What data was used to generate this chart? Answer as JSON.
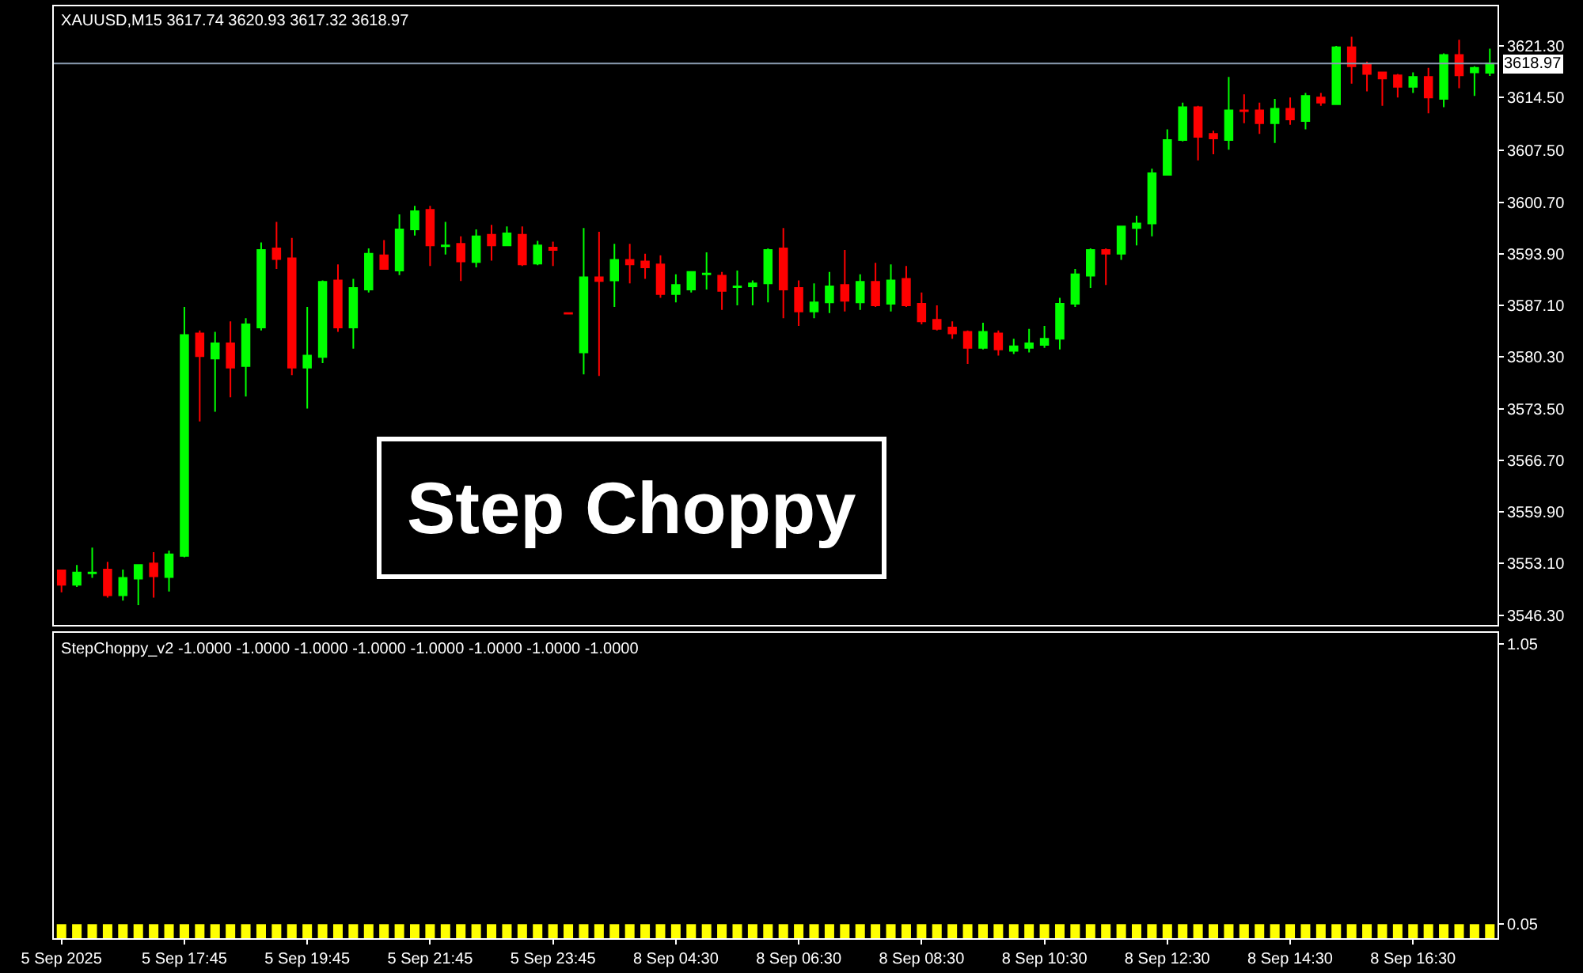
{
  "chart_data": [
    {
      "type": "candlestick",
      "title": "XAUUSD,M15 3617.74 3620.93 3617.32 3618.97",
      "categories": [
        null,
        null,
        null,
        null,
        null,
        null,
        null,
        null,
        null,
        null,
        null,
        null,
        null,
        null,
        null,
        null,
        null,
        null,
        null,
        null,
        null,
        null,
        null,
        null,
        null,
        null,
        null,
        null,
        null,
        null,
        null,
        null,
        null,
        null,
        null,
        null,
        null,
        null,
        null,
        null,
        null,
        null,
        null,
        null,
        null,
        null,
        null,
        null,
        null,
        null,
        null,
        null,
        null,
        null,
        null,
        null,
        null,
        null,
        null,
        null,
        null,
        null,
        null,
        null,
        null,
        null,
        null,
        null,
        null,
        null,
        null,
        null,
        null,
        null,
        null,
        null,
        null,
        null,
        null,
        null,
        null,
        null,
        null,
        null,
        null,
        null,
        null,
        null,
        null,
        null,
        null,
        null,
        null,
        null
      ],
      "ohlc": [
        [
          3552.2,
          3552.3,
          3549.3,
          3550.3
        ],
        [
          3550.3,
          3552.9,
          3550.0,
          3551.9
        ],
        [
          3551.8,
          3555.2,
          3551.2,
          3551.9
        ],
        [
          3552.3,
          3553.3,
          3548.6,
          3548.9
        ],
        [
          3548.9,
          3552.3,
          3548.2,
          3551.2
        ],
        [
          3551.1,
          3553.0,
          3547.6,
          3552.9
        ],
        [
          3553.1,
          3554.6,
          3548.6,
          3551.4
        ],
        [
          3551.3,
          3554.8,
          3549.4,
          3554.3
        ],
        [
          3554.1,
          3586.9,
          3553.9,
          3583.2
        ],
        [
          3583.4,
          3583.8,
          3571.8,
          3580.4
        ],
        [
          3580.1,
          3583.6,
          3573.1,
          3582.1
        ],
        [
          3582.1,
          3585.0,
          3575.0,
          3578.9
        ],
        [
          3579.1,
          3585.4,
          3575.1,
          3584.6
        ],
        [
          3584.2,
          3595.4,
          3583.8,
          3594.4
        ],
        [
          3594.6,
          3598.1,
          3591.9,
          3593.2
        ],
        [
          3593.3,
          3596.0,
          3577.9,
          3578.9
        ],
        [
          3578.9,
          3586.9,
          3573.5,
          3580.5
        ],
        [
          3580.3,
          3590.4,
          3579.5,
          3590.2
        ],
        [
          3590.4,
          3592.5,
          3583.6,
          3584.2
        ],
        [
          3584.2,
          3590.6,
          3581.4,
          3589.4
        ],
        [
          3589.2,
          3594.6,
          3588.8,
          3593.9
        ],
        [
          3593.7,
          3595.7,
          3591.8,
          3591.9
        ],
        [
          3591.7,
          3599.1,
          3591.1,
          3597.1
        ],
        [
          3597.1,
          3600.2,
          3596.3,
          3599.5
        ],
        [
          3599.7,
          3600.2,
          3592.3,
          3595.0
        ],
        [
          3594.9,
          3598.1,
          3593.8,
          3595.0
        ],
        [
          3595.2,
          3596.2,
          3590.3,
          3592.9
        ],
        [
          3592.8,
          3597.1,
          3592.1,
          3596.2
        ],
        [
          3596.4,
          3597.7,
          3593.0,
          3595.0
        ],
        [
          3595.0,
          3597.5,
          3594.9,
          3596.6
        ],
        [
          3596.4,
          3597.5,
          3592.3,
          3592.5
        ],
        [
          3592.6,
          3595.6,
          3592.4,
          3595.0
        ],
        [
          3594.7,
          3595.5,
          3592.3,
          3594.4
        ],
        [
          3586.1,
          3586.1,
          3585.9,
          3586.0
        ],
        [
          3580.9,
          3597.3,
          3578.0,
          3590.8
        ],
        [
          3590.8,
          3596.8,
          3577.8,
          3590.3
        ],
        [
          3590.4,
          3595.2,
          3586.9,
          3593.1
        ],
        [
          3593.1,
          3595.2,
          3590.0,
          3592.5
        ],
        [
          3592.9,
          3593.9,
          3590.6,
          3592.1
        ],
        [
          3592.5,
          3593.7,
          3588.1,
          3588.6
        ],
        [
          3588.6,
          3591.2,
          3587.5,
          3589.8
        ],
        [
          3589.2,
          3591.6,
          3588.8,
          3591.5
        ],
        [
          3591.2,
          3594.1,
          3589.2,
          3591.3
        ],
        [
          3591.0,
          3591.5,
          3586.5,
          3589.0
        ],
        [
          3589.5,
          3591.7,
          3587.1,
          3589.6
        ],
        [
          3589.6,
          3590.4,
          3587.1,
          3590.0
        ],
        [
          3590.0,
          3594.6,
          3587.5,
          3594.4
        ],
        [
          3594.6,
          3597.3,
          3585.4,
          3589.2
        ],
        [
          3589.4,
          3590.4,
          3584.4,
          3586.3
        ],
        [
          3586.3,
          3590.0,
          3585.4,
          3587.5
        ],
        [
          3587.5,
          3591.5,
          3586.1,
          3589.6
        ],
        [
          3589.8,
          3594.4,
          3586.3,
          3587.7
        ],
        [
          3587.5,
          3591.2,
          3586.5,
          3590.2
        ],
        [
          3590.2,
          3592.7,
          3586.9,
          3587.1
        ],
        [
          3587.3,
          3592.5,
          3586.3,
          3590.4
        ],
        [
          3590.6,
          3592.3,
          3586.9,
          3587.1
        ],
        [
          3587.3,
          3588.8,
          3584.6,
          3585.0
        ],
        [
          3585.2,
          3587.1,
          3583.8,
          3584.0
        ],
        [
          3584.2,
          3585.0,
          3582.7,
          3583.4
        ],
        [
          3583.6,
          3583.8,
          3579.4,
          3581.5
        ],
        [
          3581.5,
          3584.8,
          3581.3,
          3583.6
        ],
        [
          3583.4,
          3583.8,
          3580.5,
          3581.3
        ],
        [
          3581.1,
          3582.7,
          3580.7,
          3581.7
        ],
        [
          3581.5,
          3584.0,
          3580.9,
          3582.1
        ],
        [
          3581.9,
          3584.4,
          3581.5,
          3582.7
        ],
        [
          3582.7,
          3588.1,
          3581.3,
          3587.3
        ],
        [
          3587.3,
          3591.9,
          3586.9,
          3591.2
        ],
        [
          3591.0,
          3594.6,
          3589.4,
          3594.4
        ],
        [
          3594.4,
          3594.6,
          3589.8,
          3593.9
        ],
        [
          3593.9,
          3597.6,
          3593.1,
          3597.5
        ],
        [
          3597.3,
          3598.9,
          3595.0,
          3597.9
        ],
        [
          3597.9,
          3605.1,
          3596.2,
          3604.5
        ],
        [
          3604.3,
          3610.3,
          3604.2,
          3608.9
        ],
        [
          3608.9,
          3613.8,
          3608.7,
          3613.2
        ],
        [
          3613.2,
          3613.4,
          3606.2,
          3609.3
        ],
        [
          3609.7,
          3610.1,
          3607.0,
          3609.1
        ],
        [
          3608.9,
          3617.2,
          3607.6,
          3612.8
        ],
        [
          3612.8,
          3614.9,
          3611.1,
          3612.7
        ],
        [
          3612.8,
          3613.8,
          3609.7,
          3611.1
        ],
        [
          3611.1,
          3614.3,
          3608.5,
          3613.0
        ],
        [
          3613.0,
          3614.5,
          3610.9,
          3611.6
        ],
        [
          3611.4,
          3615.1,
          3610.3,
          3614.7
        ],
        [
          3614.5,
          3615.1,
          3613.4,
          3613.8
        ],
        [
          3613.6,
          3621.3,
          3613.5,
          3621.1
        ],
        [
          3621.1,
          3622.5,
          3616.3,
          3618.6
        ],
        [
          3618.8,
          3619.2,
          3615.3,
          3617.6
        ],
        [
          3617.8,
          3617.9,
          3613.4,
          3617.0
        ],
        [
          3617.4,
          3617.6,
          3614.5,
          3615.9
        ],
        [
          3615.9,
          3617.8,
          3615.1,
          3617.2
        ],
        [
          3617.2,
          3618.4,
          3612.4,
          3614.5
        ],
        [
          3614.3,
          3620.3,
          3613.2,
          3620.1
        ],
        [
          3620.1,
          3622.1,
          3615.7,
          3617.4
        ],
        [
          3617.8,
          3618.6,
          3614.7,
          3618.4
        ],
        [
          3617.74,
          3620.93,
          3617.32,
          3618.97
        ]
      ],
      "colors": [
        "#ff0000",
        "#00ff00",
        "#00ff00",
        "#ff0000",
        "#00ff00",
        "#00ff00",
        "#ff0000",
        "#00ff00",
        "#00ff00",
        "#ff0000",
        "#00ff00",
        "#ff0000",
        "#00ff00",
        "#00ff00",
        "#ff0000",
        "#ff0000",
        "#00ff00",
        "#00ff00",
        "#ff0000",
        "#00ff00",
        "#00ff00",
        "#ff0000",
        "#00ff00",
        "#00ff00",
        "#ff0000",
        "#00ff00",
        "#ff0000",
        "#00ff00",
        "#ff0000",
        "#00ff00",
        "#ff0000",
        "#00ff00",
        "#ff0000",
        "#ff0000",
        "#00ff00",
        "#ff0000",
        "#00ff00",
        "#ff0000",
        "#ff0000",
        "#ff0000",
        "#00ff00",
        "#00ff00",
        "#00ff00",
        "#ff0000",
        "#00ff00",
        "#00ff00",
        "#00ff00",
        "#ff0000",
        "#ff0000",
        "#00ff00",
        "#00ff00",
        "#ff0000",
        "#00ff00",
        "#ff0000",
        "#00ff00",
        "#ff0000",
        "#ff0000",
        "#ff0000",
        "#ff0000",
        "#ff0000",
        "#00ff00",
        "#ff0000",
        "#00ff00",
        "#00ff00",
        "#00ff00",
        "#00ff00",
        "#00ff00",
        "#00ff00",
        "#ff0000",
        "#00ff00",
        "#00ff00",
        "#00ff00",
        "#00ff00",
        "#00ff00",
        "#ff0000",
        "#ff0000",
        "#00ff00",
        "#ff0000",
        "#ff0000",
        "#00ff00",
        "#ff0000",
        "#00ff00",
        "#ff0000",
        "#00ff00",
        "#ff0000",
        "#ff0000",
        "#ff0000",
        "#ff0000",
        "#00ff00",
        "#ff0000",
        "#00ff00",
        "#ff0000",
        "#00ff00",
        "#00ff00"
      ],
      "ylim": [
        3545.0,
        3626.5
      ],
      "yticks": [
        {
          "value": 3546.3,
          "label": "3546.30"
        },
        {
          "value": 3553.1,
          "label": "3553.10"
        },
        {
          "value": 3559.9,
          "label": "3559.90"
        },
        {
          "value": 3566.7,
          "label": "3566.70"
        },
        {
          "value": 3573.5,
          "label": "3573.50"
        },
        {
          "value": 3580.3,
          "label": "3580.30"
        },
        {
          "value": 3587.1,
          "label": "3587.10"
        },
        {
          "value": 3593.9,
          "label": "3593.90"
        },
        {
          "value": 3600.7,
          "label": "3600.70"
        },
        {
          "value": 3607.5,
          "label": "3607.50"
        },
        {
          "value": 3614.5,
          "label": "3614.50"
        },
        {
          "value": 3621.3,
          "label": "3621.30"
        }
      ],
      "ref_lines": [
        {
          "axis": "y",
          "value": 3618.97,
          "label": "3618.97",
          "color": "#8a9bb0"
        }
      ],
      "annotations": [
        "Step Choppy"
      ],
      "grid": false,
      "tick_labels": "y"
    },
    {
      "type": "bar",
      "title": "StepChoppy_v2 -1.0000 -1.0000 -1.0000 -1.0000 -1.0000 -1.0000 -1.0000 -1.0000",
      "categories": [
        "5 Sep 2025",
        null,
        null,
        null,
        null,
        null,
        null,
        null,
        "5 Sep 17:45",
        null,
        null,
        null,
        null,
        null,
        null,
        null,
        "5 Sep 19:45",
        null,
        null,
        null,
        null,
        null,
        null,
        null,
        "5 Sep 21:45",
        null,
        null,
        null,
        null,
        null,
        null,
        null,
        "5 Sep 23:45",
        null,
        null,
        null,
        null,
        null,
        null,
        null,
        "8 Sep 04:30",
        null,
        null,
        null,
        null,
        null,
        null,
        null,
        "8 Sep 06:30",
        null,
        null,
        null,
        null,
        null,
        null,
        null,
        "8 Sep 08:30",
        null,
        null,
        null,
        null,
        null,
        null,
        null,
        "8 Sep 10:30",
        null,
        null,
        null,
        null,
        null,
        null,
        null,
        "8 Sep 12:30",
        null,
        null,
        null,
        null,
        null,
        null,
        null,
        "8 Sep 14:30",
        null,
        null,
        null,
        null,
        null,
        null,
        null,
        "8 Sep 16:30",
        null,
        null,
        null,
        null,
        null
      ],
      "values": [
        0.05,
        0.05,
        0.05,
        0.05,
        0.05,
        0.05,
        0.05,
        0.05,
        0.05,
        0.05,
        0.05,
        0.05,
        0.05,
        0.05,
        0.05,
        0.05,
        0.05,
        0.05,
        0.05,
        0.05,
        0.05,
        0.05,
        0.05,
        0.05,
        0.05,
        0.05,
        0.05,
        0.05,
        0.05,
        0.05,
        0.05,
        0.05,
        0.05,
        0.05,
        0.05,
        0.05,
        0.05,
        0.05,
        0.05,
        0.05,
        0.05,
        0.05,
        0.05,
        0.05,
        0.05,
        0.05,
        0.05,
        0.05,
        0.05,
        0.05,
        0.05,
        0.05,
        0.05,
        0.05,
        0.05,
        0.05,
        0.05,
        0.05,
        0.05,
        0.05,
        0.05,
        0.05,
        0.05,
        0.05,
        0.05,
        0.05,
        0.05,
        0.05,
        0.05,
        0.05,
        0.05,
        0.05,
        0.05,
        0.05,
        0.05,
        0.05,
        0.05,
        0.05,
        0.05,
        0.05,
        0.05,
        0.05,
        0.05,
        0.05,
        0.05,
        0.05,
        0.05,
        0.05,
        0.05,
        0.05,
        0.05,
        0.05,
        0.05,
        0.05
      ],
      "color": "#ffff00",
      "ylim": [
        0,
        1.09
      ],
      "yticks": [
        0.05,
        1.05
      ],
      "grid": false
    }
  ]
}
